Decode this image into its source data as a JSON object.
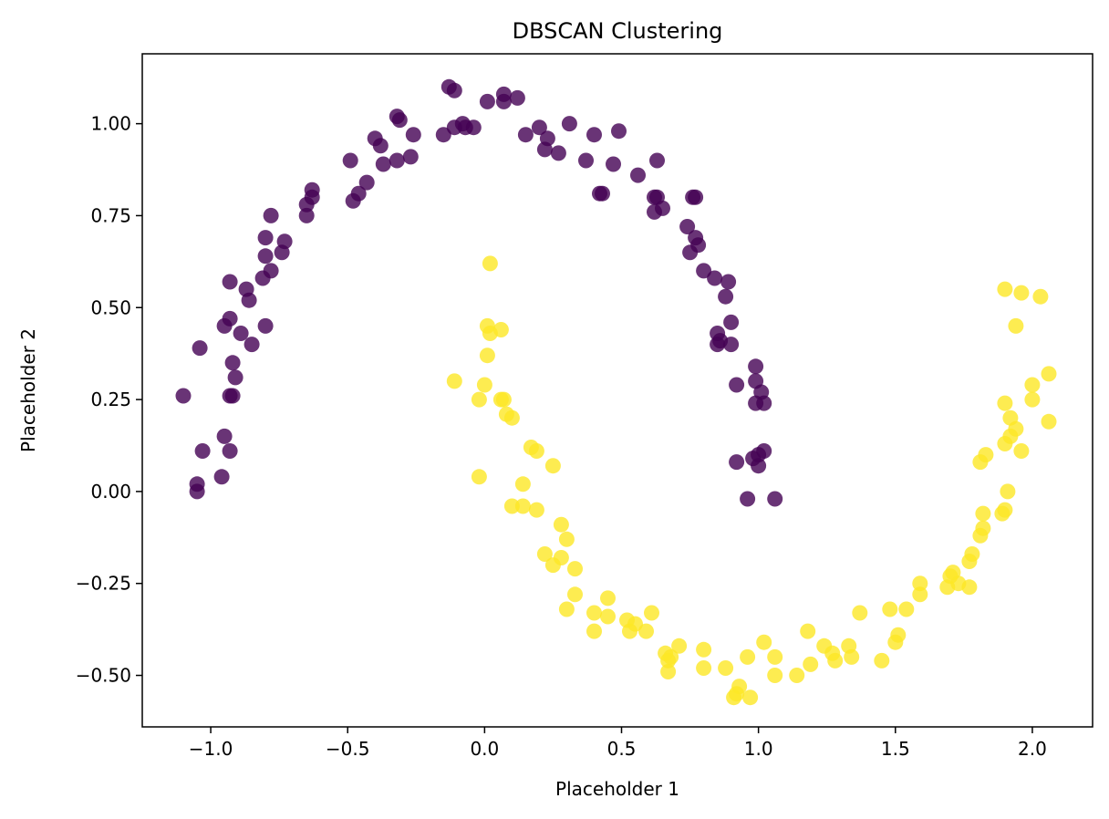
{
  "chart_data": {
    "type": "scatter",
    "title": "DBSCAN Clustering",
    "xlabel": "Placeholder 1",
    "ylabel": "Placeholder 2",
    "xlim": [
      -1.25,
      2.22
    ],
    "ylim": [
      -0.64,
      1.19
    ],
    "xticks": [
      -1.0,
      -0.5,
      0.0,
      0.5,
      1.0,
      1.5,
      2.0
    ],
    "xtick_labels": [
      "−1.0",
      "−0.5",
      "0.0",
      "0.5",
      "1.0",
      "1.5",
      "2.0"
    ],
    "yticks": [
      -0.5,
      -0.25,
      0.0,
      0.25,
      0.5,
      0.75,
      1.0
    ],
    "ytick_labels": [
      "−0.50",
      "−0.25",
      "0.00",
      "0.25",
      "0.50",
      "0.75",
      "1.00"
    ],
    "grid": false,
    "series": [
      {
        "color": "#440154",
        "points": [
          [
            -1.1,
            0.26
          ],
          [
            -1.04,
            0.39
          ],
          [
            -1.03,
            0.11
          ],
          [
            -1.05,
            0.02
          ],
          [
            -1.05,
            0.0
          ],
          [
            -0.96,
            0.04
          ],
          [
            -0.95,
            0.15
          ],
          [
            -0.93,
            0.11
          ],
          [
            -0.93,
            0.26
          ],
          [
            -0.92,
            0.26
          ],
          [
            -0.95,
            0.45
          ],
          [
            -0.93,
            0.47
          ],
          [
            -0.92,
            0.35
          ],
          [
            -0.91,
            0.31
          ],
          [
            -0.89,
            0.43
          ],
          [
            -0.93,
            0.57
          ],
          [
            -0.87,
            0.55
          ],
          [
            -0.86,
            0.52
          ],
          [
            -0.85,
            0.4
          ],
          [
            -0.8,
            0.45
          ],
          [
            -0.81,
            0.58
          ],
          [
            -0.8,
            0.64
          ],
          [
            -0.8,
            0.69
          ],
          [
            -0.78,
            0.6
          ],
          [
            -0.74,
            0.65
          ],
          [
            -0.73,
            0.68
          ],
          [
            -0.78,
            0.75
          ],
          [
            -0.65,
            0.75
          ],
          [
            -0.65,
            0.78
          ],
          [
            -0.63,
            0.82
          ],
          [
            -0.63,
            0.8
          ],
          [
            -0.48,
            0.79
          ],
          [
            -0.46,
            0.81
          ],
          [
            -0.43,
            0.84
          ],
          [
            -0.49,
            0.9
          ],
          [
            -0.37,
            0.89
          ],
          [
            -0.38,
            0.94
          ],
          [
            -0.4,
            0.96
          ],
          [
            -0.32,
            0.9
          ],
          [
            -0.27,
            0.91
          ],
          [
            -0.32,
            1.02
          ],
          [
            -0.31,
            1.01
          ],
          [
            -0.26,
            0.97
          ],
          [
            -0.15,
            0.97
          ],
          [
            -0.13,
            1.1
          ],
          [
            -0.11,
            1.09
          ],
          [
            -0.11,
            0.99
          ],
          [
            -0.08,
            1.0
          ],
          [
            -0.07,
            0.99
          ],
          [
            -0.04,
            0.99
          ],
          [
            0.01,
            1.06
          ],
          [
            0.07,
            1.08
          ],
          [
            0.07,
            1.06
          ],
          [
            0.12,
            1.07
          ],
          [
            0.15,
            0.97
          ],
          [
            0.2,
            0.99
          ],
          [
            0.23,
            0.96
          ],
          [
            0.22,
            0.93
          ],
          [
            0.27,
            0.92
          ],
          [
            0.31,
            1.0
          ],
          [
            0.37,
            0.9
          ],
          [
            0.4,
            0.97
          ],
          [
            0.42,
            0.81
          ],
          [
            0.43,
            0.81
          ],
          [
            0.47,
            0.89
          ],
          [
            0.49,
            0.98
          ],
          [
            0.56,
            0.86
          ],
          [
            0.62,
            0.8
          ],
          [
            0.63,
            0.8
          ],
          [
            0.63,
            0.9
          ],
          [
            0.62,
            0.76
          ],
          [
            0.65,
            0.77
          ],
          [
            0.74,
            0.72
          ],
          [
            0.75,
            0.65
          ],
          [
            0.76,
            0.8
          ],
          [
            0.77,
            0.69
          ],
          [
            0.77,
            0.8
          ],
          [
            0.78,
            0.67
          ],
          [
            0.8,
            0.6
          ],
          [
            0.84,
            0.58
          ],
          [
            0.85,
            0.43
          ],
          [
            0.85,
            0.4
          ],
          [
            0.86,
            0.41
          ],
          [
            0.88,
            0.53
          ],
          [
            0.89,
            0.57
          ],
          [
            0.9,
            0.46
          ],
          [
            0.9,
            0.4
          ],
          [
            0.92,
            0.29
          ],
          [
            0.92,
            0.08
          ],
          [
            0.96,
            -0.02
          ],
          [
            0.99,
            0.34
          ],
          [
            0.99,
            0.3
          ],
          [
            0.99,
            0.24
          ],
          [
            0.98,
            0.09
          ],
          [
            1.0,
            0.07
          ],
          [
            1.0,
            0.1
          ],
          [
            1.01,
            0.27
          ],
          [
            1.02,
            0.24
          ],
          [
            1.02,
            0.11
          ],
          [
            1.06,
            -0.02
          ]
        ]
      },
      {
        "color": "#fde725",
        "points": [
          [
            0.02,
            0.62
          ],
          [
            -0.11,
            0.3
          ],
          [
            0.01,
            0.45
          ],
          [
            0.02,
            0.43
          ],
          [
            0.06,
            0.44
          ],
          [
            0.01,
            0.37
          ],
          [
            0.0,
            0.29
          ],
          [
            -0.02,
            0.25
          ],
          [
            0.06,
            0.25
          ],
          [
            0.07,
            0.25
          ],
          [
            0.08,
            0.21
          ],
          [
            0.1,
            0.2
          ],
          [
            -0.02,
            0.04
          ],
          [
            0.17,
            0.12
          ],
          [
            0.19,
            0.11
          ],
          [
            0.14,
            0.02
          ],
          [
            0.1,
            -0.04
          ],
          [
            0.14,
            -0.04
          ],
          [
            0.19,
            -0.05
          ],
          [
            0.25,
            0.07
          ],
          [
            0.28,
            -0.09
          ],
          [
            0.3,
            -0.13
          ],
          [
            0.22,
            -0.17
          ],
          [
            0.25,
            -0.2
          ],
          [
            0.28,
            -0.18
          ],
          [
            0.33,
            -0.21
          ],
          [
            0.33,
            -0.28
          ],
          [
            0.3,
            -0.32
          ],
          [
            0.4,
            -0.33
          ],
          [
            0.45,
            -0.29
          ],
          [
            0.45,
            -0.34
          ],
          [
            0.4,
            -0.38
          ],
          [
            0.52,
            -0.35
          ],
          [
            0.53,
            -0.38
          ],
          [
            0.55,
            -0.36
          ],
          [
            0.59,
            -0.38
          ],
          [
            0.61,
            -0.33
          ],
          [
            0.66,
            -0.44
          ],
          [
            0.67,
            -0.46
          ],
          [
            0.67,
            -0.49
          ],
          [
            0.68,
            -0.45
          ],
          [
            0.71,
            -0.42
          ],
          [
            0.8,
            -0.43
          ],
          [
            0.8,
            -0.48
          ],
          [
            0.88,
            -0.48
          ],
          [
            0.91,
            -0.56
          ],
          [
            0.92,
            -0.55
          ],
          [
            0.93,
            -0.53
          ],
          [
            0.97,
            -0.56
          ],
          [
            0.96,
            -0.45
          ],
          [
            1.02,
            -0.41
          ],
          [
            1.06,
            -0.45
          ],
          [
            1.06,
            -0.5
          ],
          [
            1.14,
            -0.5
          ],
          [
            1.18,
            -0.38
          ],
          [
            1.19,
            -0.47
          ],
          [
            1.24,
            -0.42
          ],
          [
            1.27,
            -0.44
          ],
          [
            1.28,
            -0.46
          ],
          [
            1.33,
            -0.42
          ],
          [
            1.34,
            -0.45
          ],
          [
            1.37,
            -0.33
          ],
          [
            1.45,
            -0.46
          ],
          [
            1.48,
            -0.32
          ],
          [
            1.5,
            -0.41
          ],
          [
            1.51,
            -0.39
          ],
          [
            1.54,
            -0.32
          ],
          [
            1.59,
            -0.25
          ],
          [
            1.59,
            -0.28
          ],
          [
            1.69,
            -0.26
          ],
          [
            1.7,
            -0.23
          ],
          [
            1.71,
            -0.22
          ],
          [
            1.73,
            -0.25
          ],
          [
            1.77,
            -0.26
          ],
          [
            1.77,
            -0.19
          ],
          [
            1.78,
            -0.17
          ],
          [
            1.81,
            -0.12
          ],
          [
            1.82,
            -0.1
          ],
          [
            1.82,
            -0.06
          ],
          [
            1.81,
            0.08
          ],
          [
            1.83,
            0.1
          ],
          [
            1.89,
            -0.06
          ],
          [
            1.9,
            -0.05
          ],
          [
            1.9,
            0.13
          ],
          [
            1.91,
            0.0
          ],
          [
            1.9,
            0.24
          ],
          [
            1.92,
            0.15
          ],
          [
            1.92,
            0.2
          ],
          [
            1.94,
            0.17
          ],
          [
            1.96,
            0.11
          ],
          [
            2.0,
            0.25
          ],
          [
            2.0,
            0.29
          ],
          [
            2.06,
            0.19
          ],
          [
            2.06,
            0.32
          ],
          [
            1.9,
            0.55
          ],
          [
            1.96,
            0.54
          ],
          [
            2.03,
            0.53
          ],
          [
            1.94,
            0.45
          ]
        ]
      }
    ]
  }
}
